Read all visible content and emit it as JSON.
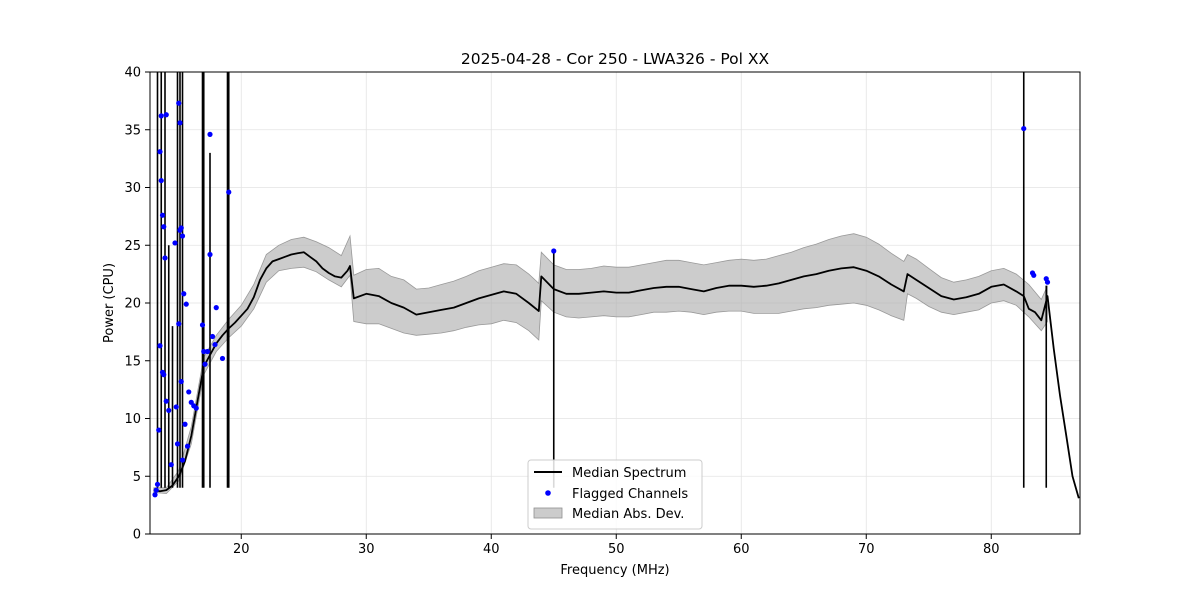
{
  "chart_data": {
    "type": "line",
    "title": "2025-04-28 - Cor 250 - LWA326 - Pol XX",
    "xlabel": "Frequency (MHz)",
    "ylabel": "Power (CPU)",
    "xlim": [
      12.7,
      87.1
    ],
    "ylim": [
      0,
      40
    ],
    "xticks": [
      20,
      30,
      40,
      50,
      60,
      70,
      80
    ],
    "yticks": [
      0,
      5,
      10,
      15,
      20,
      25,
      30,
      35,
      40
    ],
    "grid": true,
    "legend_position": "lower-center",
    "legend": [
      {
        "label": "Median Spectrum",
        "kind": "line",
        "color": "#000000"
      },
      {
        "label": "Flagged Channels",
        "kind": "marker",
        "color": "#0000ff"
      },
      {
        "label": "Median Abs. Dev.",
        "kind": "patch",
        "color": "#b0b0b0"
      }
    ],
    "series": [
      {
        "name": "Median Spectrum",
        "x": [
          13.0,
          13.5,
          14.0,
          14.5,
          15.0,
          15.5,
          16.0,
          16.5,
          17.0,
          17.5,
          18.0,
          18.5,
          19.0,
          19.5,
          20.0,
          20.5,
          21.0,
          21.5,
          22.0,
          22.5,
          23.0,
          23.5,
          24.0,
          24.5,
          25.0,
          25.5,
          26.0,
          26.5,
          27.0,
          27.5,
          28.0,
          28.5,
          28.7,
          29.0,
          30.0,
          31.0,
          32.0,
          33.0,
          34.0,
          35.0,
          36.0,
          37.0,
          38.0,
          39.0,
          40.0,
          41.0,
          42.0,
          43.0,
          43.8,
          44.0,
          45.0,
          46.0,
          47.0,
          48.0,
          49.0,
          50.0,
          51.0,
          52.0,
          53.0,
          54.0,
          55.0,
          56.0,
          57.0,
          58.0,
          59.0,
          60.0,
          61.0,
          62.0,
          63.0,
          64.0,
          65.0,
          66.0,
          67.0,
          68.0,
          69.0,
          70.0,
          71.0,
          72.0,
          73.0,
          73.3,
          74.0,
          75.0,
          76.0,
          77.0,
          78.0,
          79.0,
          80.0,
          81.0,
          82.0,
          82.6,
          83.0,
          83.5,
          84.0,
          84.5,
          85.0,
          85.5,
          86.0,
          86.5,
          87.0
        ],
        "y": [
          3.8,
          3.7,
          3.8,
          4.2,
          5.0,
          6.3,
          8.5,
          11.5,
          14.5,
          15.5,
          16.5,
          17.2,
          17.8,
          18.3,
          18.9,
          19.5,
          20.5,
          22.0,
          23.0,
          23.6,
          23.8,
          24.0,
          24.2,
          24.3,
          24.4,
          24.0,
          23.6,
          23.0,
          22.6,
          22.3,
          22.2,
          22.8,
          23.2,
          20.4,
          20.8,
          20.6,
          20.0,
          19.6,
          19.0,
          19.2,
          19.4,
          19.6,
          20.0,
          20.4,
          20.7,
          21.0,
          20.8,
          20.0,
          19.3,
          22.3,
          21.2,
          20.8,
          20.8,
          20.9,
          21.0,
          20.9,
          20.9,
          21.1,
          21.3,
          21.4,
          21.4,
          21.2,
          21.0,
          21.3,
          21.5,
          21.5,
          21.4,
          21.5,
          21.7,
          22.0,
          22.3,
          22.5,
          22.8,
          23.0,
          23.1,
          22.8,
          22.3,
          21.6,
          21.0,
          22.5,
          22.0,
          21.3,
          20.6,
          20.3,
          20.5,
          20.8,
          21.4,
          21.6,
          21.0,
          20.6,
          19.5,
          19.2,
          18.5,
          20.6,
          16.0,
          12.0,
          8.5,
          5.0,
          3.1
        ]
      }
    ],
    "mad_band": {
      "x": [
        13.0,
        14.0,
        15.0,
        16.0,
        17.0,
        18.0,
        19.0,
        20.0,
        21.0,
        22.0,
        23.0,
        24.0,
        25.0,
        26.0,
        27.0,
        28.0,
        28.7,
        29.0,
        30.0,
        31.0,
        32.0,
        33.0,
        34.0,
        35.0,
        36.0,
        37.0,
        38.0,
        39.0,
        40.0,
        41.0,
        42.0,
        43.0,
        43.8,
        44.0,
        45.0,
        46.0,
        47.0,
        48.0,
        49.0,
        50.0,
        51.0,
        52.0,
        53.0,
        54.0,
        55.0,
        56.0,
        57.0,
        58.0,
        59.0,
        60.0,
        61.0,
        62.0,
        63.0,
        64.0,
        65.0,
        66.0,
        67.0,
        68.0,
        69.0,
        70.0,
        71.0,
        72.0,
        73.0,
        73.3,
        74.0,
        75.0,
        76.0,
        77.0,
        78.0,
        79.0,
        80.0,
        81.0,
        82.0,
        83.0,
        84.0,
        84.5
      ],
      "lower": [
        3.6,
        3.5,
        4.6,
        7.8,
        13.8,
        15.8,
        17.0,
        18.0,
        19.5,
        21.8,
        22.8,
        23.0,
        23.1,
        22.7,
        22.0,
        21.4,
        22.4,
        18.4,
        18.2,
        18.2,
        17.8,
        17.4,
        17.2,
        17.3,
        17.4,
        17.6,
        17.9,
        18.1,
        18.2,
        18.5,
        18.3,
        17.6,
        16.8,
        20.2,
        19.2,
        18.8,
        18.7,
        18.8,
        18.9,
        18.8,
        18.8,
        19.0,
        19.2,
        19.2,
        19.3,
        19.2,
        19.0,
        19.2,
        19.3,
        19.3,
        19.1,
        19.1,
        19.1,
        19.3,
        19.5,
        19.6,
        19.8,
        19.9,
        20.0,
        19.8,
        19.4,
        18.9,
        18.5,
        20.8,
        20.4,
        19.7,
        19.2,
        19.0,
        19.2,
        19.4,
        20.0,
        20.2,
        19.8,
        18.8,
        17.6,
        18.4
      ],
      "upper": [
        4.0,
        4.0,
        5.5,
        9.3,
        15.3,
        17.2,
        18.6,
        19.8,
        21.6,
        24.2,
        25.0,
        25.5,
        25.7,
        25.3,
        24.8,
        24.1,
        25.8,
        22.4,
        22.9,
        23.0,
        22.3,
        22.0,
        21.2,
        21.3,
        21.6,
        21.9,
        22.3,
        22.8,
        23.1,
        23.4,
        23.3,
        22.5,
        21.7,
        24.4,
        23.3,
        22.9,
        22.9,
        23.0,
        23.2,
        23.1,
        23.1,
        23.3,
        23.5,
        23.7,
        23.7,
        23.5,
        23.3,
        23.5,
        23.7,
        23.8,
        23.7,
        23.8,
        24.1,
        24.4,
        24.8,
        25.1,
        25.5,
        25.8,
        26.0,
        25.7,
        25.1,
        24.3,
        23.6,
        24.2,
        23.8,
        23.0,
        22.2,
        21.8,
        22.0,
        22.3,
        22.8,
        23.0,
        22.5,
        21.6,
        20.3,
        21.5
      ]
    },
    "spikes": [
      {
        "x": 13.3,
        "y": 40
      },
      {
        "x": 13.6,
        "y": 40
      },
      {
        "x": 13.9,
        "y": 40
      },
      {
        "x": 14.2,
        "y": 25
      },
      {
        "x": 14.5,
        "y": 18
      },
      {
        "x": 14.9,
        "y": 40
      },
      {
        "x": 15.1,
        "y": 40
      },
      {
        "x": 15.3,
        "y": 40
      },
      {
        "x": 16.9,
        "y": 40
      },
      {
        "x": 17.0,
        "y": 40
      },
      {
        "x": 17.5,
        "y": 33
      },
      {
        "x": 18.9,
        "y": 40
      },
      {
        "x": 19.0,
        "y": 40
      },
      {
        "x": 45.0,
        "y": 24.4
      },
      {
        "x": 82.6,
        "y": 40
      },
      {
        "x": 84.4,
        "y": 21.5
      }
    ],
    "flagged_channels": {
      "x": [
        13.1,
        13.2,
        13.3,
        13.4,
        13.5,
        13.5,
        13.6,
        13.6,
        13.7,
        13.7,
        13.8,
        13.8,
        13.9,
        14.0,
        14.0,
        14.2,
        14.4,
        14.7,
        14.8,
        14.9,
        15.0,
        15.0,
        15.1,
        15.1,
        15.2,
        15.2,
        15.3,
        15.3,
        15.4,
        15.5,
        15.6,
        15.7,
        15.8,
        16.0,
        16.2,
        16.4,
        16.9,
        17.0,
        17.1,
        17.3,
        17.5,
        17.5,
        17.7,
        17.9,
        18.0,
        18.5,
        19.0,
        45.0,
        82.6,
        83.3,
        83.4,
        84.4,
        84.5
      ],
      "y": [
        3.4,
        3.8,
        4.3,
        9.0,
        16.3,
        33.1,
        36.2,
        30.6,
        27.6,
        14.0,
        13.8,
        26.6,
        23.9,
        11.5,
        36.3,
        10.7,
        6.0,
        25.2,
        11.0,
        7.8,
        37.3,
        18.2,
        35.6,
        26.3,
        26.5,
        13.2,
        25.8,
        6.4,
        20.8,
        9.5,
        19.9,
        7.6,
        12.3,
        11.4,
        11.1,
        10.9,
        18.1,
        15.8,
        14.7,
        15.8,
        34.6,
        24.2,
        17.1,
        16.4,
        19.6,
        15.2,
        29.6,
        24.5,
        35.1,
        22.6,
        22.4,
        22.1,
        21.8
      ]
    }
  }
}
